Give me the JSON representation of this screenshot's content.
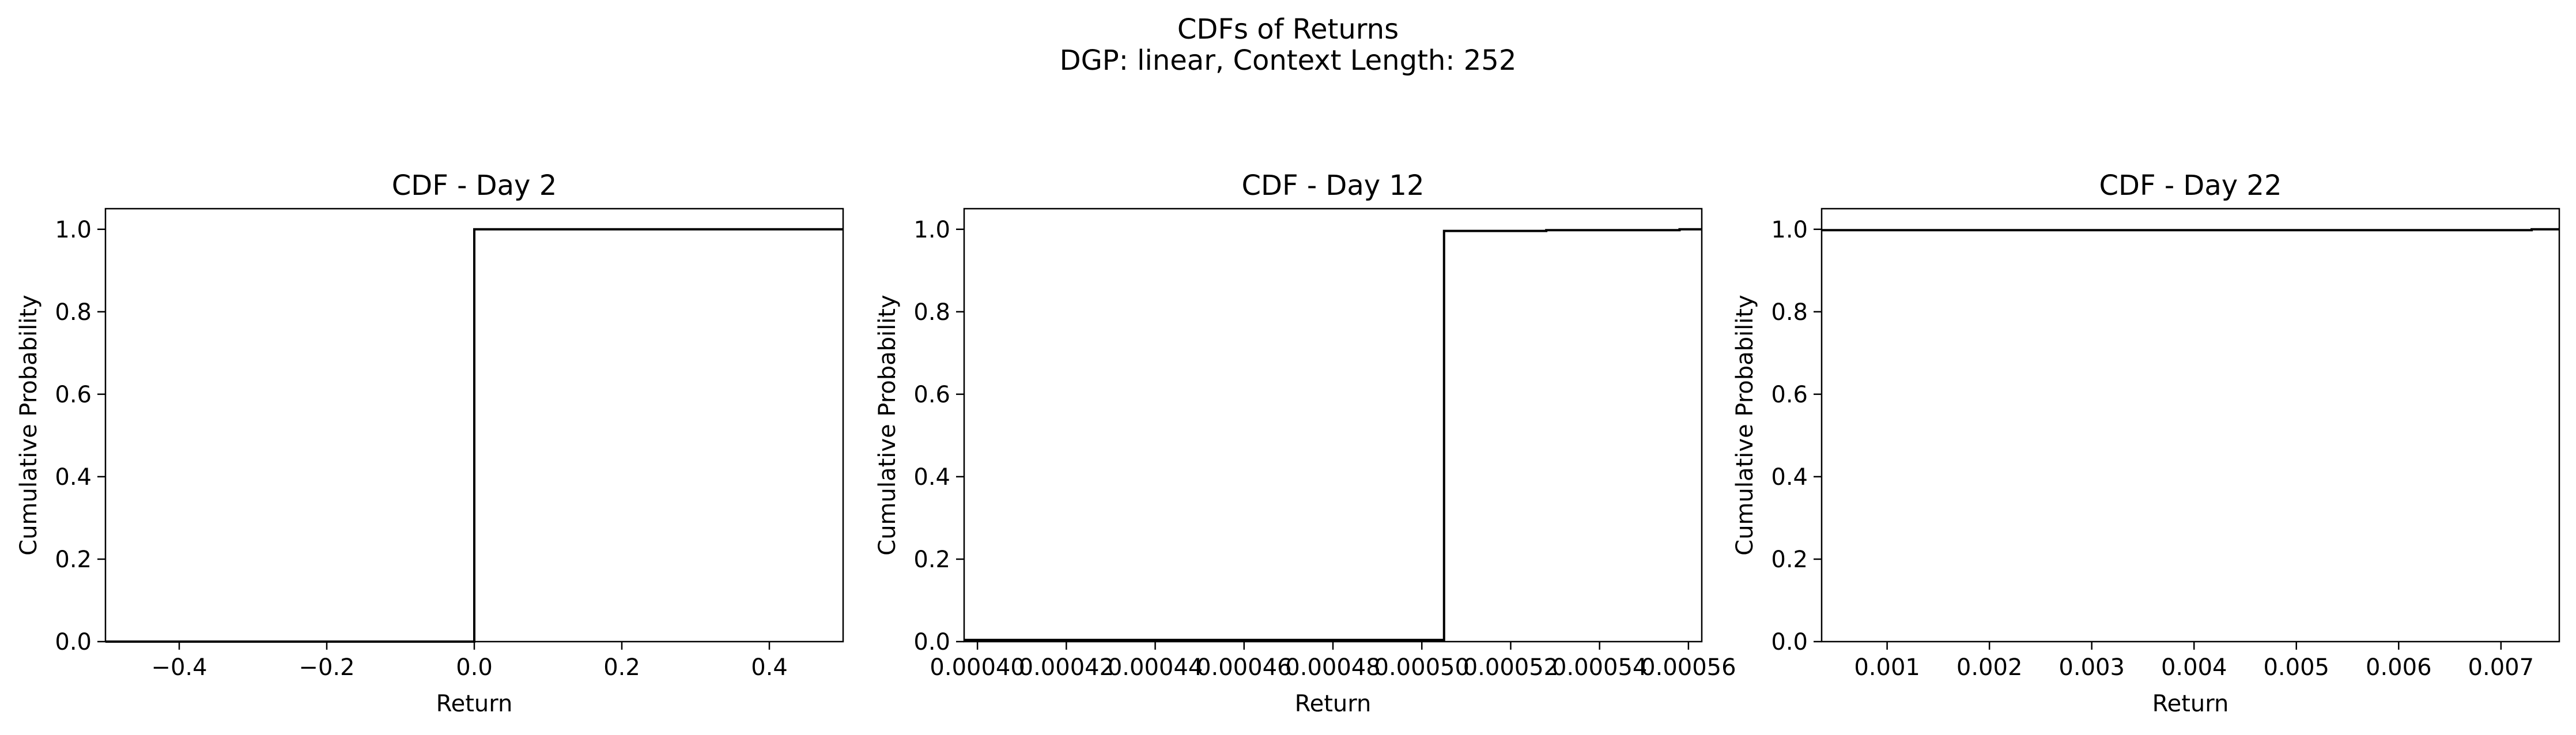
{
  "figure": {
    "suptitle_line1": "CDFs of Returns",
    "suptitle_line2": "DGP: linear, Context Length: 252",
    "line_color": "#000000",
    "background": "#ffffff"
  },
  "chart_data": [
    {
      "type": "line",
      "step": true,
      "title": "CDF - Day 2",
      "xlabel": "Return",
      "ylabel": "Cumulative Probability",
      "xlim": [
        -0.5,
        0.5
      ],
      "ylim": [
        0.0,
        1.05
      ],
      "xticks": [
        -0.4,
        -0.2,
        0.0,
        0.2,
        0.4
      ],
      "xticklabels": [
        "−0.4",
        "−0.2",
        "0.0",
        "0.2",
        "0.4"
      ],
      "yticks": [
        0.0,
        0.2,
        0.4,
        0.6,
        0.8,
        1.0
      ],
      "yticklabels": [
        "0.0",
        "0.2",
        "0.4",
        "0.6",
        "0.8",
        "1.0"
      ],
      "grid": false,
      "series": [
        {
          "x": [
            -0.5,
            0.0,
            0.0,
            0.5
          ],
          "y": [
            0.0,
            0.0,
            1.0,
            1.0
          ]
        }
      ]
    },
    {
      "type": "line",
      "step": true,
      "title": "CDF - Day 12",
      "xlabel": "Return",
      "ylabel": "Cumulative Probability",
      "xlim": [
        0.000397,
        0.000563
      ],
      "ylim": [
        0.0,
        1.05
      ],
      "xticks": [
        0.0004,
        0.00042,
        0.00044,
        0.00046,
        0.00048,
        0.0005,
        0.00052,
        0.00054,
        0.00056
      ],
      "xticklabels": [
        "0.00040",
        "0.00042",
        "0.00044",
        "0.00046",
        "0.00048",
        "0.00050",
        "0.00052",
        "0.00054",
        "0.00056"
      ],
      "yticks": [
        0.0,
        0.2,
        0.4,
        0.6,
        0.8,
        1.0
      ],
      "yticklabels": [
        "0.0",
        "0.2",
        "0.4",
        "0.6",
        "0.8",
        "1.0"
      ],
      "grid": false,
      "series": [
        {
          "x": [
            0.000397,
            0.000505,
            0.000505,
            0.000528,
            0.000528,
            0.000558,
            0.000558,
            0.000563
          ],
          "y": [
            0.004,
            0.004,
            0.996,
            0.996,
            0.998,
            0.998,
            1.0,
            1.0
          ]
        }
      ]
    },
    {
      "type": "line",
      "step": true,
      "title": "CDF - Day 22",
      "xlabel": "Return",
      "ylabel": "Cumulative Probability",
      "xlim": [
        0.00036,
        0.00757
      ],
      "ylim": [
        0.0,
        1.05
      ],
      "xticks": [
        0.001,
        0.002,
        0.003,
        0.004,
        0.005,
        0.006,
        0.007
      ],
      "xticklabels": [
        "0.001",
        "0.002",
        "0.003",
        "0.004",
        "0.005",
        "0.006",
        "0.007"
      ],
      "yticks": [
        0.0,
        0.2,
        0.4,
        0.6,
        0.8,
        1.0
      ],
      "yticklabels": [
        "0.0",
        "0.2",
        "0.4",
        "0.6",
        "0.8",
        "1.0"
      ],
      "grid": false,
      "series": [
        {
          "x": [
            0.00036,
            0.0073,
            0.0073,
            0.00757
          ],
          "y": [
            0.998,
            0.998,
            1.0,
            1.0
          ]
        }
      ]
    }
  ]
}
